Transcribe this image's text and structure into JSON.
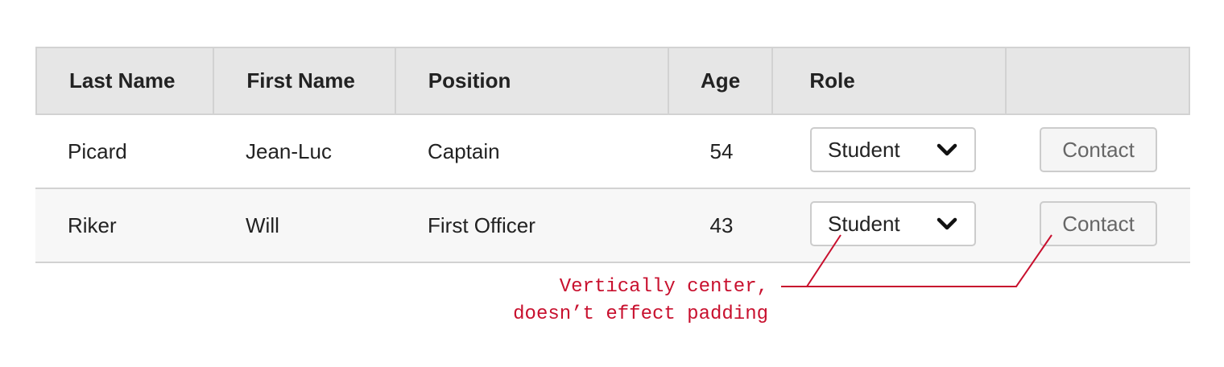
{
  "table": {
    "headers": [
      "Last Name",
      "First Name",
      "Position",
      "Age",
      "Role",
      ""
    ],
    "rows": [
      {
        "last_name": "Picard",
        "first_name": "Jean-Luc",
        "position": "Captain",
        "age": "54",
        "role": "Student",
        "action": "Contact"
      },
      {
        "last_name": "Riker",
        "first_name": "Will",
        "position": "First Officer",
        "age": "43",
        "role": "Student",
        "action": "Contact"
      }
    ]
  },
  "annotation": {
    "line1": "Vertically center,",
    "line2": "doesn’t effect padding",
    "color": "#c8102e"
  },
  "icons": {
    "select_arrow": "chevron-down-icon"
  }
}
